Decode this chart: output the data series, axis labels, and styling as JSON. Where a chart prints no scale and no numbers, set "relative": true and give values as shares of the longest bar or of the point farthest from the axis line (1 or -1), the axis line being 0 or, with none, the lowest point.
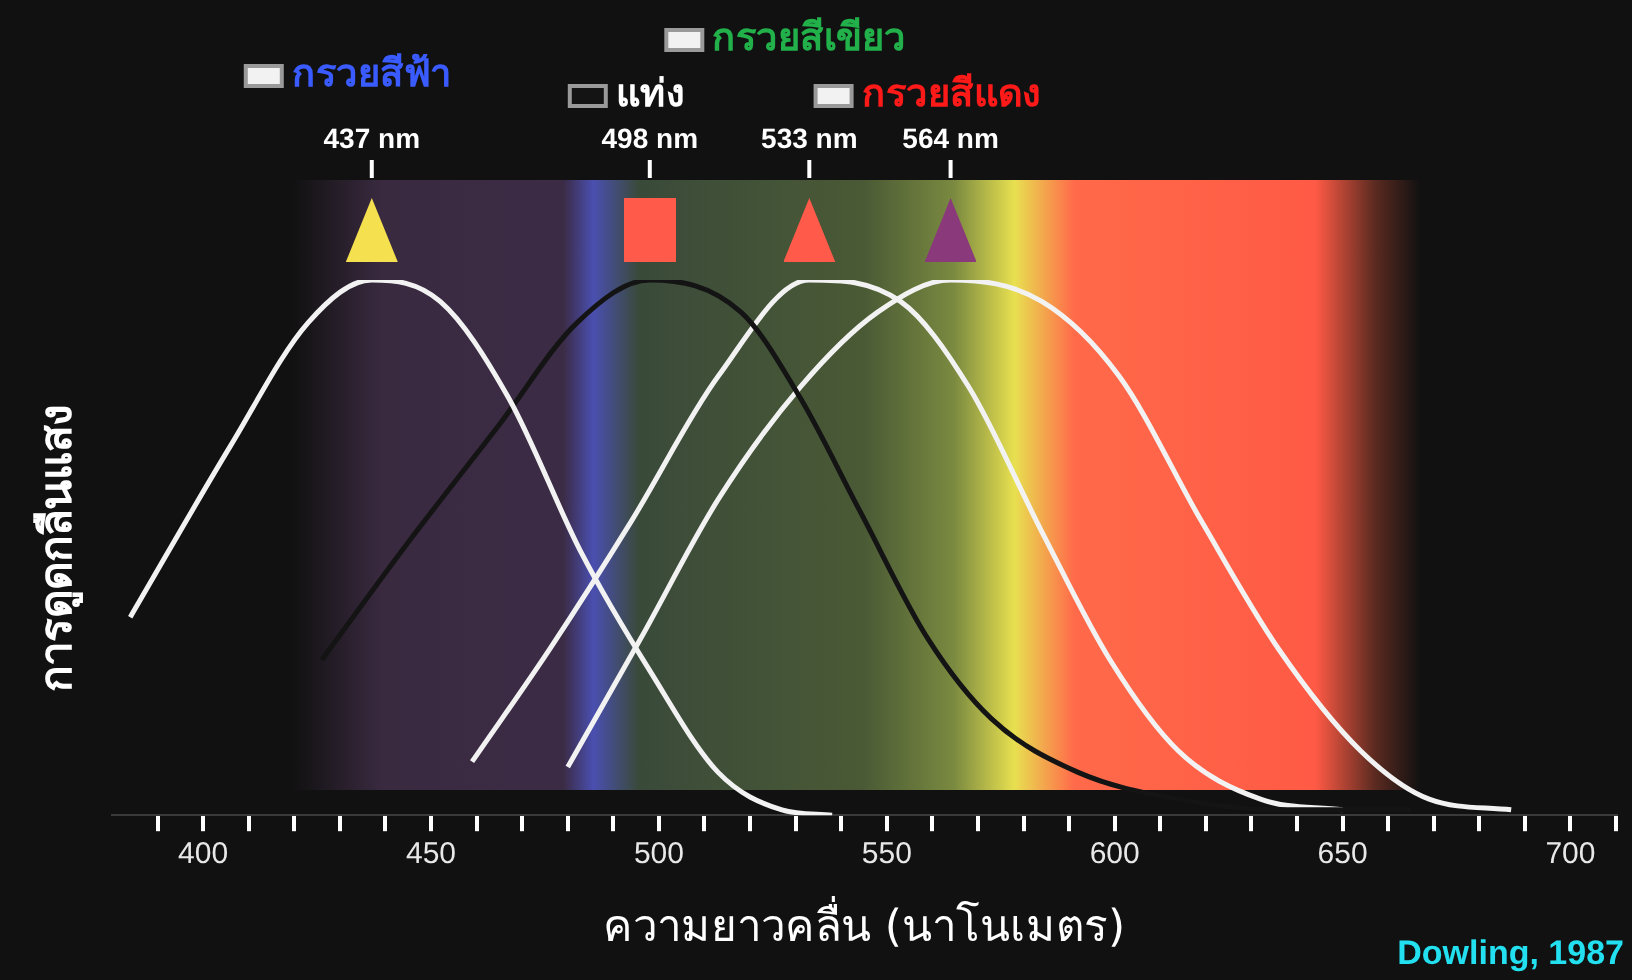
{
  "chart_data": {
    "type": "line",
    "relative": true,
    "xlabel": "ความยาวคลื่น (นาโนเมตร)",
    "ylabel": "การดูดกลืนแสง",
    "xlim": [
      380,
      710
    ],
    "xticks": [
      {
        "value": 390,
        "label": null
      },
      400,
      {
        "value": 410,
        "label": null
      },
      {
        "value": 420,
        "label": null
      },
      {
        "value": 430,
        "label": null
      },
      {
        "value": 440,
        "label": null
      },
      450,
      {
        "value": 460,
        "label": null
      },
      {
        "value": 470,
        "label": null
      },
      {
        "value": 480,
        "label": null
      },
      {
        "value": 490,
        "label": null
      },
      500,
      {
        "value": 510,
        "label": null
      },
      {
        "value": 520,
        "label": null
      },
      {
        "value": 530,
        "label": null
      },
      {
        "value": 540,
        "label": null
      },
      550,
      {
        "value": 560,
        "label": null
      },
      {
        "value": 570,
        "label": null
      },
      {
        "value": 580,
        "label": null
      },
      {
        "value": 590,
        "label": null
      },
      600,
      {
        "value": 610,
        "label": null
      },
      {
        "value": 620,
        "label": null
      },
      {
        "value": 630,
        "label": null
      },
      {
        "value": 640,
        "label": null
      },
      650,
      {
        "value": 660,
        "label": null
      },
      {
        "value": 670,
        "label": null
      },
      {
        "value": 680,
        "label": null
      },
      {
        "value": 690,
        "label": null
      },
      700,
      {
        "value": 710,
        "label": null
      }
    ],
    "grid": false,
    "legend": "top",
    "marker": "none",
    "series": [
      {
        "name": "กรวยสีฟ้า",
        "color": "#f2f2f2",
        "x": [
          384,
          406,
          423,
          437,
          452,
          467,
          483,
          498,
          513,
          527,
          538
        ],
        "values": [
          0.37,
          0.69,
          0.92,
          1.0,
          0.96,
          0.78,
          0.49,
          0.27,
          0.08,
          0.01,
          0
        ]
      },
      {
        "name": "แท่ง",
        "color": "#141414",
        "x": [
          426,
          445,
          465,
          482,
          498,
          518,
          531,
          544,
          559,
          573,
          592,
          614,
          636,
          665
        ],
        "values": [
          0.29,
          0.51,
          0.73,
          0.92,
          1.0,
          0.94,
          0.78,
          0.57,
          0.33,
          0.18,
          0.08,
          0.03,
          0.01,
          0.01
        ]
      },
      {
        "name": "กรวยสีเขียว",
        "color": "#f2f2f2",
        "x": [
          459,
          476,
          494,
          513,
          533,
          553,
          568,
          584,
          599,
          614,
          632,
          650
        ],
        "values": [
          0.1,
          0.31,
          0.55,
          0.82,
          1.0,
          0.96,
          0.8,
          0.53,
          0.29,
          0.12,
          0.03,
          0.01
        ]
      },
      {
        "name": "กรวยสีแดง",
        "color": "#f2f2f2",
        "x": [
          480,
          496,
          513,
          531,
          548,
          564,
          584,
          601,
          619,
          636,
          654,
          669,
          687
        ],
        "values": [
          0.09,
          0.33,
          0.59,
          0.8,
          0.94,
          1.0,
          0.96,
          0.82,
          0.55,
          0.31,
          0.12,
          0.03,
          0.01
        ]
      }
    ],
    "annotations": [
      "437 nm",
      "498 nm",
      "533 nm",
      "564 nm",
      "Dowling, 1987"
    ]
  }
}
